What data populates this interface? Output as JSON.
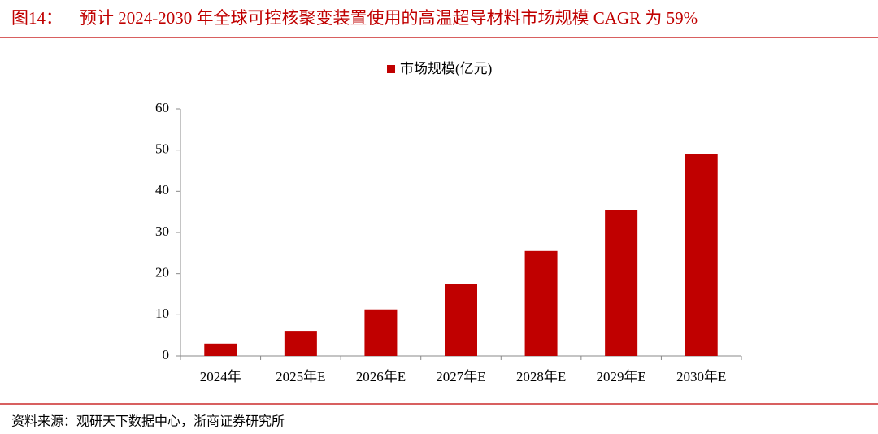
{
  "figure_label": "图14：",
  "chart_data": {
    "type": "bar",
    "title": "预计 2024-2030 年全球可控核聚变装置使用的高温超导材料市场规模 CAGR 为 59%",
    "categories": [
      "2024年",
      "2025年E",
      "2026年E",
      "2027年E",
      "2028年E",
      "2029年E",
      "2030年E"
    ],
    "series": [
      {
        "name": "市场规模(亿元)",
        "color": "#c00000",
        "values": [
          3,
          6.1,
          11.3,
          17.4,
          25.5,
          35.5,
          49.1
        ]
      }
    ],
    "ylim": [
      0,
      60
    ],
    "yticks": [
      0,
      10,
      20,
      30,
      40,
      50,
      60
    ],
    "legend": "top",
    "grid": false
  },
  "source": "资料来源：观研天下数据中心，浙商证券研究所"
}
